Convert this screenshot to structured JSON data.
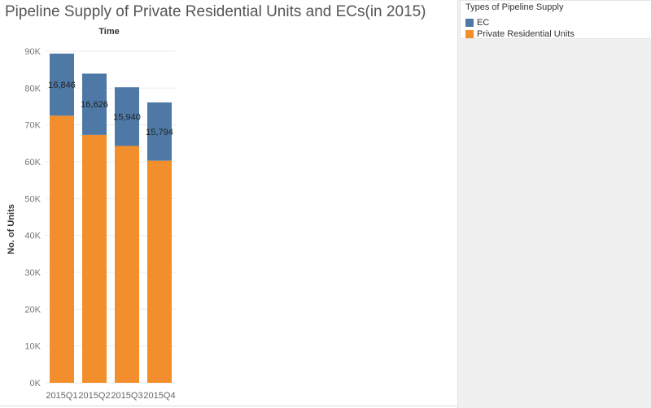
{
  "title": "Pipeline Supply of Private Residential Units and ECs(in 2015)",
  "legend": {
    "title": "Types of Pipeline Supply",
    "items": [
      {
        "label": "EC",
        "color": "#4e79a7"
      },
      {
        "label": "Private Residential Units",
        "color": "#f28e2b"
      }
    ]
  },
  "chart_data": {
    "type": "bar",
    "stacked": true,
    "title": "Time",
    "xlabel": "",
    "ylabel": "No. of Units",
    "categories": [
      "2015Q1",
      "2015Q2",
      "2015Q3",
      "2015Q4"
    ],
    "series": [
      {
        "name": "Private Residential Units",
        "color": "#f28e2b",
        "values": [
          72500,
          67300,
          64300,
          60300
        ]
      },
      {
        "name": "EC",
        "color": "#4e79a7",
        "values": [
          16846,
          16626,
          15940,
          15794
        ]
      }
    ],
    "data_labels": [
      "16,846",
      "16,626",
      "15,940",
      "15,794"
    ],
    "ylim": [
      0,
      90000
    ],
    "yticks": [
      0,
      10000,
      20000,
      30000,
      40000,
      50000,
      60000,
      70000,
      80000,
      90000
    ],
    "ytick_labels": [
      "0K",
      "10K",
      "20K",
      "30K",
      "40K",
      "50K",
      "60K",
      "70K",
      "80K",
      "90K"
    ],
    "grid": true
  }
}
